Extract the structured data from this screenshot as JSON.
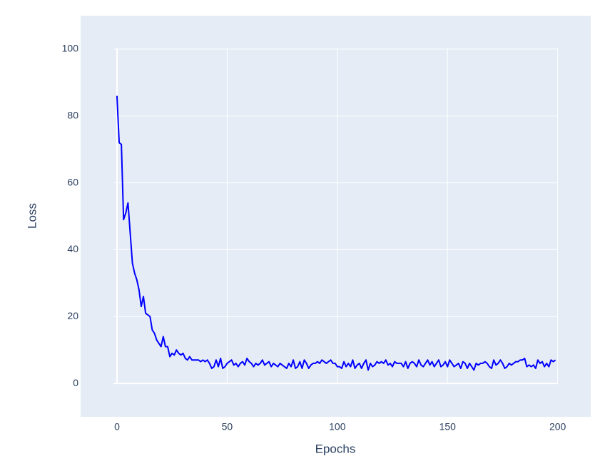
{
  "chart_data": {
    "type": "line",
    "x_label": "Epochs",
    "y_label": "Loss",
    "x": [
      0,
      1,
      2,
      3,
      4,
      5,
      6,
      7,
      8,
      9,
      10,
      11,
      12,
      13,
      14,
      15,
      16,
      17,
      18,
      19,
      20,
      21,
      22,
      23,
      24,
      25,
      26,
      27,
      28,
      29,
      30,
      31,
      32,
      33,
      34,
      35,
      36,
      37,
      38,
      39,
      40,
      41,
      42,
      43,
      44,
      45,
      46,
      47,
      48,
      49,
      50,
      51,
      52,
      53,
      54,
      55,
      56,
      57,
      58,
      59,
      60,
      61,
      62,
      63,
      64,
      65,
      66,
      67,
      68,
      69,
      70,
      71,
      72,
      73,
      74,
      75,
      76,
      77,
      78,
      79,
      80,
      81,
      82,
      83,
      84,
      85,
      86,
      87,
      88,
      89,
      90,
      91,
      92,
      93,
      94,
      95,
      96,
      97,
      98,
      99,
      100,
      101,
      102,
      103,
      104,
      105,
      106,
      107,
      108,
      109,
      110,
      111,
      112,
      113,
      114,
      115,
      116,
      117,
      118,
      119,
      120,
      121,
      122,
      123,
      124,
      125,
      126,
      127,
      128,
      129,
      130,
      131,
      132,
      133,
      134,
      135,
      136,
      137,
      138,
      139,
      140,
      141,
      142,
      143,
      144,
      145,
      146,
      147,
      148,
      149,
      150,
      151,
      152,
      153,
      154,
      155,
      156,
      157,
      158,
      159,
      160,
      161,
      162,
      163,
      164,
      165,
      166,
      167,
      168,
      169,
      170,
      171,
      172,
      173,
      174,
      175,
      176,
      177,
      178,
      179,
      180,
      181,
      182,
      183,
      184,
      185,
      186,
      187,
      188,
      189,
      190,
      191,
      192,
      193,
      194,
      195,
      196,
      197,
      198,
      199
    ],
    "series": [
      {
        "name": "Loss",
        "color": "#0000ff",
        "values": [
          86,
          72,
          71.5,
          49,
          51,
          54,
          45,
          36,
          33,
          31,
          28,
          23,
          26,
          21,
          20.5,
          20,
          16,
          15,
          13,
          12,
          11,
          14,
          11,
          11,
          8,
          9,
          8.5,
          10,
          9,
          8.5,
          9,
          7.5,
          7,
          8,
          7,
          7,
          7,
          7,
          6.5,
          7,
          6.5,
          7,
          6,
          4.5,
          5,
          7,
          5,
          7.5,
          4.5,
          5,
          6,
          6.5,
          7,
          5.5,
          6,
          5,
          6,
          6.5,
          5.5,
          7.5,
          6.5,
          6,
          5,
          6,
          5.5,
          6,
          7,
          5.5,
          6,
          6.5,
          5,
          6,
          5.5,
          5,
          6,
          5.5,
          5,
          4.5,
          6,
          5,
          7,
          4.5,
          5,
          6.5,
          4.5,
          7,
          6,
          4.5,
          5.5,
          6,
          6,
          6.5,
          6,
          7,
          6.5,
          6,
          6.5,
          7,
          6,
          6,
          5,
          5,
          4.5,
          6.5,
          5,
          6,
          5,
          7,
          4.5,
          5.5,
          6,
          4.5,
          6,
          7,
          4,
          6,
          5,
          5.5,
          6.5,
          6,
          6.5,
          6,
          7,
          5.5,
          6,
          5,
          6.5,
          6,
          6,
          6,
          5,
          6.5,
          4.5,
          6,
          6.5,
          6,
          5,
          7,
          5.5,
          5,
          6,
          7,
          5.5,
          6.5,
          5,
          6,
          7,
          5,
          5.5,
          6.5,
          5,
          7,
          6,
          5,
          5.5,
          6,
          4.5,
          6.5,
          6,
          4.5,
          6,
          5,
          4,
          6,
          5.5,
          6,
          6,
          6.5,
          6,
          5,
          4.5,
          7,
          5.5,
          6,
          7,
          6,
          4.5,
          5,
          6,
          5.5,
          6,
          6.5,
          6.5,
          7,
          7,
          7.5,
          5,
          5.5,
          5,
          5.5,
          4.5,
          7,
          6,
          6.5,
          5,
          6,
          5,
          7,
          6.5,
          7
        ]
      }
    ],
    "xlim": [
      -16.5,
      215
    ],
    "ylim": [
      -10,
      110
    ],
    "xticks": [
      0,
      50,
      100,
      150,
      200
    ],
    "yticks": [
      0,
      20,
      40,
      60,
      80,
      100
    ],
    "grid": true,
    "plot_background": "#e5ecf6"
  }
}
